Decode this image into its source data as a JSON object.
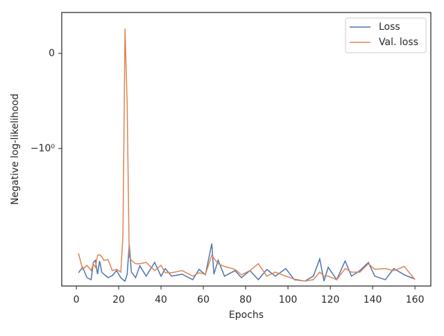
{
  "chart_data": {
    "type": "line",
    "xlabel": "Epochs",
    "ylabel": "Negative log-likelihood",
    "yscale": "symlog",
    "linthresh": 1,
    "legend": "upper right",
    "xlim": [
      -6.9,
      167.5
    ],
    "ylim": [
      -40.4,
      0.43
    ],
    "xticks": [
      0,
      20,
      40,
      60,
      80,
      100,
      120,
      140,
      160
    ],
    "yticks": [
      0,
      {
        "value": -1,
        "label": "−10⁰"
      }
    ],
    "x": [
      1,
      3,
      5,
      7,
      8,
      9,
      10,
      11,
      12,
      13,
      15,
      17,
      19,
      21,
      22,
      23,
      24,
      25,
      26,
      28,
      30,
      33,
      37,
      40,
      42,
      45,
      50,
      55,
      58,
      61,
      64,
      65,
      67,
      70,
      75,
      78,
      82,
      86,
      90,
      94,
      99,
      103,
      108,
      112,
      115,
      117,
      119,
      123,
      127,
      130,
      134,
      138,
      141,
      146,
      150,
      155,
      160
    ],
    "series": [
      {
        "name": "Loss",
        "color": "#4c72b0",
        "values": [
          -28.3,
          -24.4,
          -32.3,
          -34.1,
          -21.4,
          -20.2,
          -29.4,
          -20.6,
          -27.8,
          -29.4,
          -32.3,
          -30.5,
          -26.7,
          -32.3,
          -34.1,
          -35.4,
          -29.4,
          -13.2,
          -27.8,
          -32.3,
          -23.5,
          -31.0,
          -21.4,
          -31.0,
          -25.3,
          -31.0,
          -29.4,
          -34.1,
          -25.8,
          -29.9,
          -12.9,
          -29.4,
          -20.2,
          -31.0,
          -26.7,
          -32.3,
          -26.7,
          -34.1,
          -25.8,
          -31.0,
          -25.3,
          -34.1,
          -35.4,
          -31.0,
          -19.5,
          -35.4,
          -24.4,
          -34.1,
          -20.6,
          -31.0,
          -26.7,
          -21.4,
          -31.0,
          -34.1,
          -25.3,
          -29.9,
          -33.5
        ]
      },
      {
        "name": "Val. loss",
        "color": "#dd8452",
        "values": [
          -16.8,
          -25.8,
          -23.1,
          -26.7,
          -22.2,
          -24.4,
          -17.7,
          -17.4,
          -18.4,
          -20.2,
          -19.9,
          -26.7,
          -25.8,
          -27.8,
          -10.5,
          0.26,
          -0.53,
          -18.4,
          -20.2,
          -22.2,
          -22.2,
          -21.4,
          -26.7,
          -23.1,
          -28.3,
          -28.3,
          -26.7,
          -31.0,
          -28.3,
          -29.4,
          -17.7,
          -19.1,
          -22.2,
          -23.9,
          -25.8,
          -29.9,
          -26.7,
          -22.2,
          -31.0,
          -27.8,
          -31.0,
          -33.5,
          -35.4,
          -34.1,
          -27.8,
          -31.0,
          -31.0,
          -34.1,
          -25.3,
          -27.8,
          -27.8,
          -22.2,
          -25.8,
          -25.3,
          -26.7,
          -23.9,
          -34.1
        ]
      }
    ]
  }
}
